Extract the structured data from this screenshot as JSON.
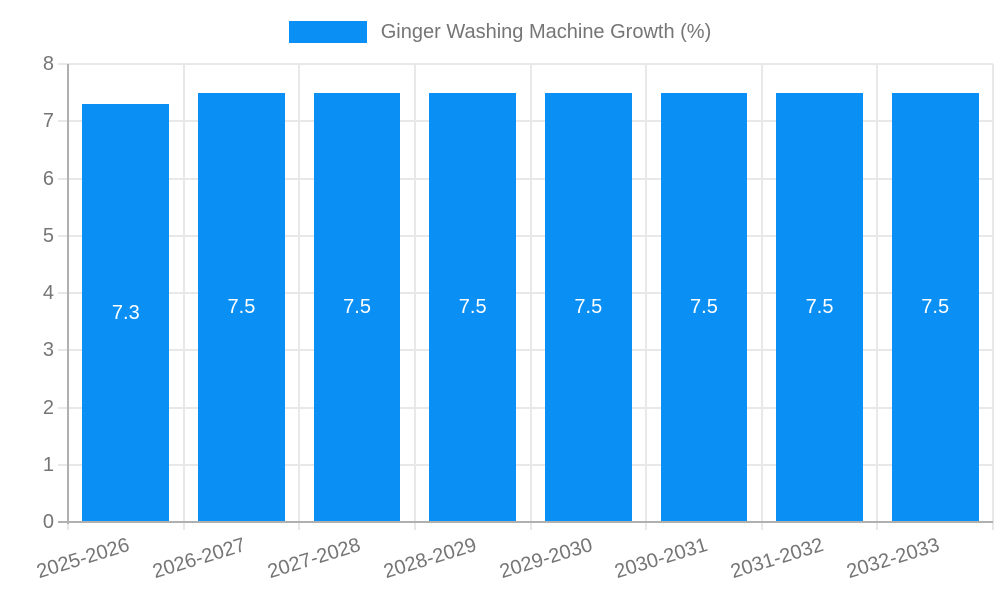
{
  "chart_data": {
    "type": "bar",
    "title": "Ginger Washing Machine Growth (%)",
    "legend": {
      "position": "top-center",
      "label": "Ginger Washing Machine Growth (%)"
    },
    "categories": [
      "2025-2026",
      "2026-2027",
      "2027-2028",
      "2028-2029",
      "2029-2030",
      "2030-2031",
      "2031-2032",
      "2032-2033"
    ],
    "values": [
      7.3,
      7.5,
      7.5,
      7.5,
      7.5,
      7.5,
      7.5,
      7.5
    ],
    "value_labels": [
      "7.3",
      "7.5",
      "7.5",
      "7.5",
      "7.5",
      "7.5",
      "7.5",
      "7.5"
    ],
    "xlabel": "",
    "ylabel": "",
    "ylim": [
      0,
      8
    ],
    "ytick_step": 1,
    "ytick_labels": [
      "0",
      "1",
      "2",
      "3",
      "4",
      "5",
      "6",
      "7",
      "8"
    ],
    "grid": true,
    "colors": {
      "bar": "#0A8FF5",
      "value_label": "#FFFFFF",
      "tick_text": "#757575",
      "grid_line": "#E8E8E8",
      "axis_line": "#B0B0B0",
      "background": "#FFFFFF"
    }
  }
}
